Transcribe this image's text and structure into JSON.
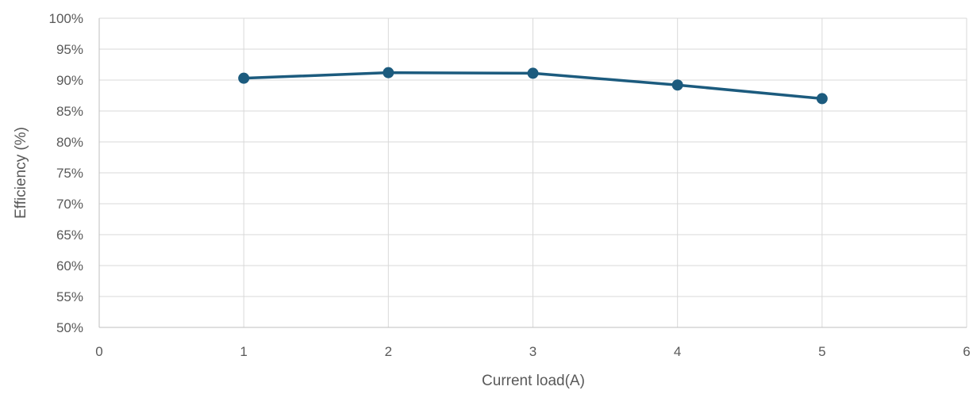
{
  "chart_data": {
    "type": "line",
    "xlabel": "Current load(A)",
    "ylabel": "Efficiency (%)",
    "xlim": [
      0,
      6
    ],
    "ylim": [
      50,
      100
    ],
    "x_ticks": [
      0,
      1,
      2,
      3,
      4,
      5,
      6
    ],
    "y_ticks": [
      50,
      55,
      60,
      65,
      70,
      75,
      80,
      85,
      90,
      95,
      100
    ],
    "y_tick_suffix": "%",
    "grid": "both",
    "legend": "none",
    "series": [
      {
        "color": "#1c5b7e",
        "marker": "circle",
        "x": [
          1,
          2,
          3,
          4,
          5
        ],
        "y": [
          90.3,
          91.2,
          91.1,
          89.2,
          87.0
        ]
      }
    ]
  }
}
